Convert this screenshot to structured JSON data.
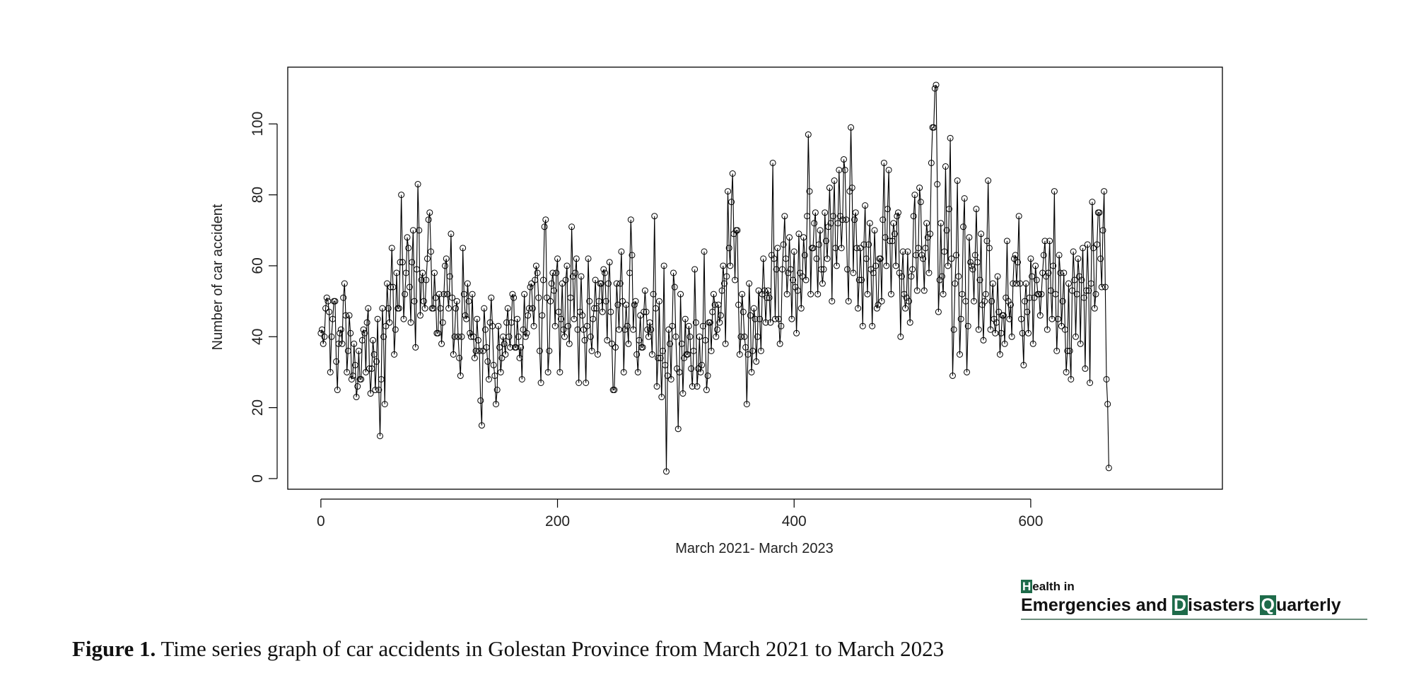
{
  "chart_data": {
    "type": "line",
    "markers": "open-circle",
    "xlabel": "March 2021-  March 2023",
    "ylabel": "Number of car accident",
    "xlim": [
      -28,
      762
    ],
    "ylim": [
      -3,
      116
    ],
    "x_ticks": [
      0,
      200,
      400,
      600
    ],
    "y_ticks": [
      0,
      20,
      40,
      60,
      80,
      100
    ],
    "grid": false,
    "anchors": [
      [
        0,
        41
      ],
      [
        2,
        38
      ],
      [
        4,
        48
      ],
      [
        6,
        50
      ],
      [
        8,
        30
      ],
      [
        10,
        45
      ],
      [
        12,
        50
      ],
      [
        14,
        25
      ],
      [
        16,
        41
      ],
      [
        18,
        38
      ],
      [
        20,
        55
      ],
      [
        22,
        30
      ],
      [
        24,
        46
      ],
      [
        26,
        28
      ],
      [
        28,
        38
      ],
      [
        30,
        23
      ],
      [
        32,
        36
      ],
      [
        34,
        28
      ],
      [
        36,
        42
      ],
      [
        38,
        30
      ],
      [
        40,
        48
      ],
      [
        42,
        24
      ],
      [
        44,
        39
      ],
      [
        46,
        25
      ],
      [
        48,
        45
      ],
      [
        50,
        12
      ],
      [
        52,
        48
      ],
      [
        54,
        21
      ],
      [
        56,
        55
      ],
      [
        58,
        44
      ],
      [
        60,
        65
      ],
      [
        62,
        35
      ],
      [
        64,
        58
      ],
      [
        66,
        48
      ],
      [
        68,
        80
      ],
      [
        70,
        45
      ],
      [
        72,
        58
      ],
      [
        74,
        65
      ],
      [
        76,
        44
      ],
      [
        78,
        70
      ],
      [
        80,
        37
      ],
      [
        82,
        83
      ],
      [
        84,
        46
      ],
      [
        86,
        58
      ],
      [
        88,
        48
      ],
      [
        90,
        62
      ],
      [
        92,
        75
      ],
      [
        94,
        48
      ],
      [
        96,
        58
      ],
      [
        98,
        41
      ],
      [
        100,
        52
      ],
      [
        102,
        38
      ],
      [
        104,
        52
      ],
      [
        106,
        62
      ],
      [
        108,
        48
      ],
      [
        110,
        69
      ],
      [
        112,
        35
      ],
      [
        114,
        48
      ],
      [
        116,
        40
      ],
      [
        118,
        29
      ],
      [
        120,
        65
      ],
      [
        122,
        46
      ],
      [
        124,
        55
      ],
      [
        126,
        41
      ],
      [
        128,
        52
      ],
      [
        130,
        34
      ],
      [
        132,
        45
      ],
      [
        134,
        36
      ],
      [
        136,
        15
      ],
      [
        138,
        48
      ],
      [
        140,
        37
      ],
      [
        142,
        28
      ],
      [
        144,
        51
      ],
      [
        146,
        32
      ],
      [
        148,
        21
      ],
      [
        150,
        43
      ],
      [
        152,
        30
      ],
      [
        154,
        40
      ],
      [
        156,
        35
      ],
      [
        158,
        48
      ],
      [
        160,
        37
      ],
      [
        162,
        52
      ],
      [
        164,
        37
      ],
      [
        166,
        45
      ],
      [
        168,
        34
      ],
      [
        170,
        28
      ],
      [
        172,
        52
      ],
      [
        174,
        41
      ],
      [
        176,
        48
      ],
      [
        178,
        55
      ],
      [
        180,
        43
      ],
      [
        182,
        60
      ],
      [
        184,
        51
      ],
      [
        186,
        27
      ],
      [
        188,
        56
      ],
      [
        190,
        73
      ],
      [
        192,
        30
      ],
      [
        194,
        50
      ],
      [
        196,
        58
      ],
      [
        198,
        43
      ],
      [
        200,
        62
      ],
      [
        202,
        30
      ],
      [
        204,
        55
      ],
      [
        206,
        40
      ],
      [
        208,
        60
      ],
      [
        210,
        38
      ],
      [
        212,
        71
      ],
      [
        214,
        45
      ],
      [
        216,
        62
      ],
      [
        218,
        27
      ],
      [
        220,
        57
      ],
      [
        222,
        42
      ],
      [
        224,
        27
      ],
      [
        226,
        62
      ],
      [
        228,
        40
      ],
      [
        230,
        45
      ],
      [
        232,
        56
      ],
      [
        234,
        35
      ],
      [
        236,
        55
      ],
      [
        238,
        47
      ],
      [
        240,
        58
      ],
      [
        242,
        39
      ],
      [
        244,
        61
      ],
      [
        246,
        38
      ],
      [
        248,
        25
      ],
      [
        250,
        55
      ],
      [
        252,
        42
      ],
      [
        254,
        64
      ],
      [
        256,
        30
      ],
      [
        258,
        49
      ],
      [
        260,
        38
      ],
      [
        262,
        73
      ],
      [
        264,
        42
      ],
      [
        266,
        50
      ],
      [
        268,
        30
      ],
      [
        270,
        46
      ],
      [
        272,
        37
      ],
      [
        274,
        53
      ],
      [
        276,
        42
      ],
      [
        278,
        44
      ],
      [
        280,
        35
      ],
      [
        282,
        74
      ],
      [
        284,
        26
      ],
      [
        286,
        50
      ],
      [
        288,
        23
      ],
      [
        290,
        60
      ],
      [
        292,
        2
      ],
      [
        294,
        42
      ],
      [
        296,
        28
      ],
      [
        298,
        58
      ],
      [
        300,
        40
      ],
      [
        302,
        14
      ],
      [
        304,
        52
      ],
      [
        306,
        24
      ],
      [
        308,
        45
      ],
      [
        310,
        35
      ],
      [
        312,
        40
      ],
      [
        314,
        26
      ],
      [
        316,
        59
      ],
      [
        318,
        26
      ],
      [
        320,
        40
      ],
      [
        322,
        32
      ],
      [
        324,
        64
      ],
      [
        326,
        25
      ],
      [
        328,
        44
      ],
      [
        330,
        36
      ],
      [
        332,
        52
      ],
      [
        334,
        40
      ],
      [
        336,
        49
      ],
      [
        338,
        46
      ],
      [
        340,
        60
      ],
      [
        342,
        38
      ],
      [
        344,
        81
      ],
      [
        346,
        60
      ],
      [
        348,
        86
      ],
      [
        350,
        56
      ],
      [
        352,
        70
      ],
      [
        354,
        35
      ],
      [
        356,
        52
      ],
      [
        358,
        40
      ],
      [
        360,
        21
      ],
      [
        362,
        55
      ],
      [
        364,
        30
      ],
      [
        366,
        48
      ],
      [
        368,
        33
      ],
      [
        370,
        53
      ],
      [
        372,
        36
      ],
      [
        374,
        62
      ],
      [
        376,
        44
      ],
      [
        378,
        53
      ],
      [
        380,
        44
      ],
      [
        382,
        89
      ],
      [
        384,
        45
      ],
      [
        386,
        65
      ],
      [
        388,
        38
      ],
      [
        390,
        59
      ],
      [
        392,
        74
      ],
      [
        394,
        52
      ],
      [
        396,
        68
      ],
      [
        398,
        45
      ],
      [
        400,
        64
      ],
      [
        402,
        41
      ],
      [
        404,
        69
      ],
      [
        406,
        48
      ],
      [
        408,
        68
      ],
      [
        410,
        56
      ],
      [
        412,
        97
      ],
      [
        414,
        52
      ],
      [
        416,
        65
      ],
      [
        418,
        75
      ],
      [
        420,
        52
      ],
      [
        422,
        70
      ],
      [
        424,
        55
      ],
      [
        426,
        75
      ],
      [
        428,
        62
      ],
      [
        430,
        82
      ],
      [
        432,
        50
      ],
      [
        434,
        84
      ],
      [
        436,
        60
      ],
      [
        438,
        87
      ],
      [
        440,
        65
      ],
      [
        442,
        90
      ],
      [
        444,
        73
      ],
      [
        446,
        50
      ],
      [
        448,
        99
      ],
      [
        450,
        58
      ],
      [
        452,
        75
      ],
      [
        454,
        48
      ],
      [
        456,
        65
      ],
      [
        458,
        43
      ],
      [
        460,
        77
      ],
      [
        462,
        52
      ],
      [
        464,
        72
      ],
      [
        466,
        43
      ],
      [
        468,
        70
      ],
      [
        470,
        48
      ],
      [
        472,
        62
      ],
      [
        474,
        50
      ],
      [
        476,
        89
      ],
      [
        478,
        60
      ],
      [
        480,
        87
      ],
      [
        482,
        52
      ],
      [
        484,
        72
      ],
      [
        486,
        60
      ],
      [
        488,
        75
      ],
      [
        490,
        40
      ],
      [
        492,
        64
      ],
      [
        494,
        48
      ],
      [
        496,
        64
      ],
      [
        498,
        44
      ],
      [
        500,
        59
      ],
      [
        502,
        80
      ],
      [
        504,
        53
      ],
      [
        506,
        82
      ],
      [
        508,
        63
      ],
      [
        510,
        53
      ],
      [
        512,
        72
      ],
      [
        514,
        58
      ],
      [
        516,
        89
      ],
      [
        518,
        99
      ],
      [
        520,
        111
      ],
      [
        522,
        47
      ],
      [
        524,
        72
      ],
      [
        526,
        52
      ],
      [
        528,
        88
      ],
      [
        530,
        60
      ],
      [
        532,
        96
      ],
      [
        534,
        29
      ],
      [
        536,
        55
      ],
      [
        538,
        84
      ],
      [
        540,
        35
      ],
      [
        542,
        52
      ],
      [
        544,
        79
      ],
      [
        546,
        30
      ],
      [
        548,
        68
      ],
      [
        550,
        60
      ],
      [
        552,
        50
      ],
      [
        554,
        76
      ],
      [
        556,
        42
      ],
      [
        558,
        69
      ],
      [
        560,
        39
      ],
      [
        562,
        52
      ],
      [
        564,
        84
      ],
      [
        566,
        42
      ],
      [
        568,
        55
      ],
      [
        570,
        41
      ],
      [
        572,
        57
      ],
      [
        574,
        35
      ],
      [
        576,
        46
      ],
      [
        578,
        38
      ],
      [
        580,
        67
      ],
      [
        582,
        45
      ],
      [
        584,
        40
      ],
      [
        586,
        62
      ],
      [
        588,
        55
      ],
      [
        590,
        74
      ],
      [
        592,
        45
      ],
      [
        594,
        32
      ],
      [
        596,
        55
      ],
      [
        598,
        41
      ],
      [
        600,
        62
      ],
      [
        602,
        38
      ],
      [
        604,
        60
      ],
      [
        606,
        52
      ],
      [
        608,
        46
      ],
      [
        610,
        58
      ],
      [
        612,
        67
      ],
      [
        614,
        42
      ],
      [
        616,
        67
      ],
      [
        618,
        45
      ],
      [
        620,
        81
      ],
      [
        622,
        36
      ],
      [
        624,
        63
      ],
      [
        626,
        43
      ],
      [
        628,
        58
      ],
      [
        630,
        30
      ],
      [
        632,
        55
      ],
      [
        634,
        28
      ],
      [
        636,
        64
      ],
      [
        638,
        40
      ],
      [
        640,
        62
      ],
      [
        642,
        38
      ],
      [
        644,
        65
      ],
      [
        646,
        31
      ],
      [
        648,
        66
      ],
      [
        650,
        27
      ],
      [
        652,
        78
      ],
      [
        654,
        48
      ],
      [
        656,
        66
      ],
      [
        658,
        75
      ],
      [
        660,
        54
      ],
      [
        662,
        81
      ],
      [
        664,
        28
      ],
      [
        666,
        3
      ]
    ]
  },
  "caption": {
    "label": "Figure 1.",
    "text": " Time series graph of car accidents in Golestan Province from March 2021 to March 2023"
  },
  "logo": {
    "line1_initial": "H",
    "line1_rest": "ealth in",
    "word1": "Emergencies and ",
    "word2_initial": "D",
    "word2_rest": "isasters ",
    "word3_initial": "Q",
    "word3_rest": "uarterly",
    "accent_color": "#1e6b4a"
  },
  "colors": {
    "line": "#000000",
    "marker_stroke": "#000000",
    "frame": "#000000"
  }
}
